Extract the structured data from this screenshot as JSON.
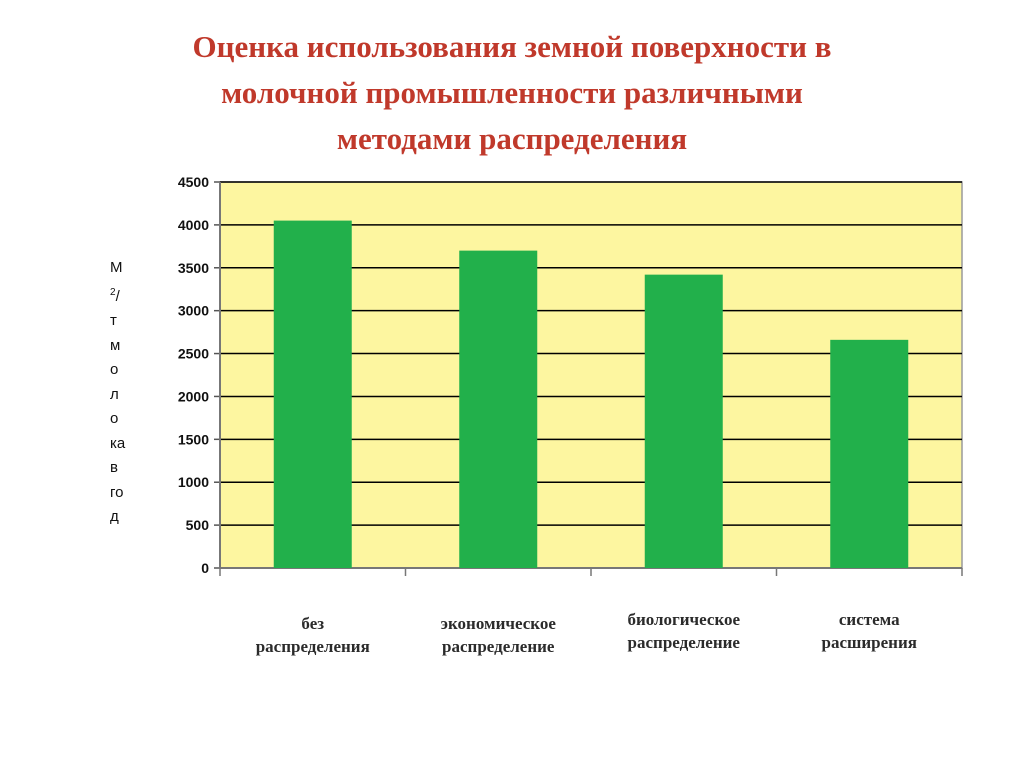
{
  "title_lines": [
    "Оценка использования земной поверхности в",
    "молочной промышленности различными",
    "методами распределения"
  ],
  "ylabel_lines": [
    "М",
    "2",
    "/",
    "т",
    "м",
    "о",
    "л",
    "о",
    "ка",
    "в",
    "го",
    "д"
  ],
  "colors": {
    "plot_bg": "#fdf6a0",
    "bar": "#22b04b",
    "title": "#c0392b",
    "grid": "#000000"
  },
  "chart_data": {
    "type": "bar",
    "title": "Оценка использования земной поверхности в молочной промышленности различными методами распределения",
    "categories": [
      "без распределения",
      "экономическое распределение",
      "биологическое распределение",
      "система расширения"
    ],
    "category_lines": [
      [
        "без",
        "распределения"
      ],
      [
        "экономическое",
        "распределение"
      ],
      [
        "биологическое",
        "распределение"
      ],
      [
        "система",
        "расширения"
      ]
    ],
    "values": [
      4050,
      3700,
      3420,
      2660
    ],
    "ylabel": "М2/т молока в год",
    "ylim": [
      0,
      4500
    ],
    "yticks": [
      "0",
      "500",
      "1000",
      "1500",
      "2000",
      "2500",
      "3000",
      "3500",
      "4000",
      "4500"
    ],
    "grid": true,
    "legend": false
  }
}
